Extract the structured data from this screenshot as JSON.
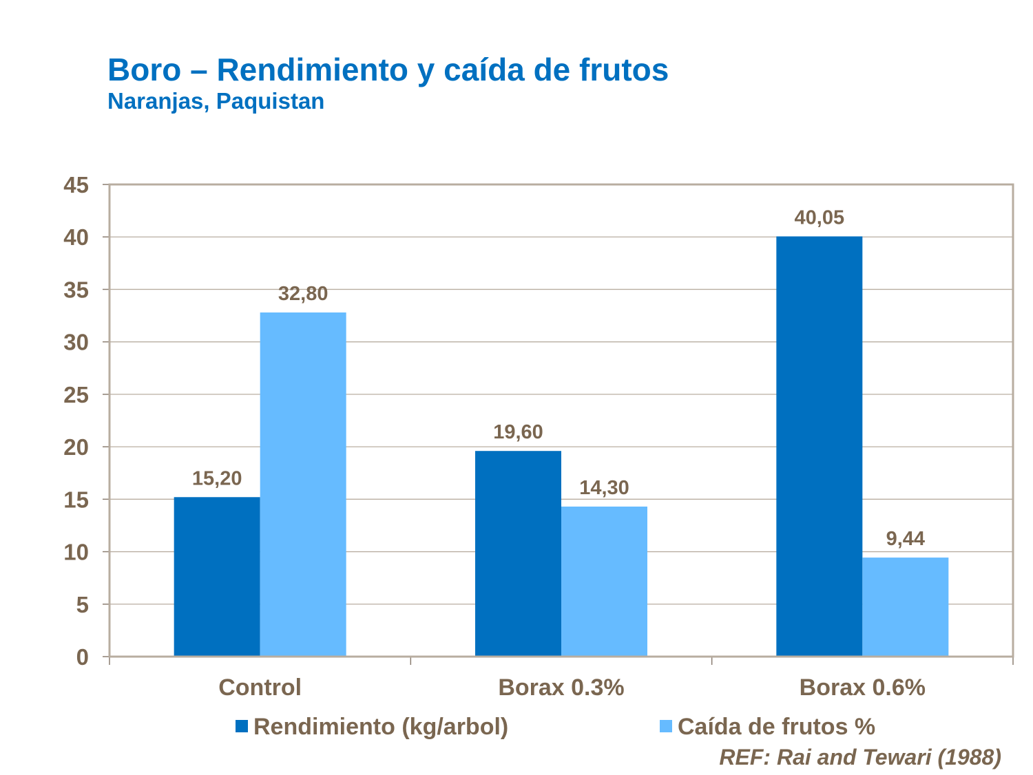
{
  "chart_data": {
    "type": "bar",
    "title": "Boro – Rendimiento y caída de frutos",
    "subtitle": "Naranjas, Paquistan",
    "categories": [
      "Control",
      "Borax 0.3%",
      "Borax 0.6%"
    ],
    "series": [
      {
        "name": "Rendimiento (kg/arbol)",
        "values": [
          15.2,
          19.6,
          40.05
        ],
        "labels": [
          "15,20",
          "19,60",
          "40,05"
        ],
        "color": "#0070C0"
      },
      {
        "name": "Caída de frutos %",
        "values": [
          32.8,
          14.3,
          9.44
        ],
        "labels": [
          "32,80",
          "14,30",
          "9,44"
        ],
        "color": "#66BBFF"
      }
    ],
    "ylim": [
      0,
      45
    ],
    "yticks": [
      0,
      5,
      10,
      15,
      20,
      25,
      30,
      35,
      40,
      45
    ],
    "grid": true,
    "legend": "bottom",
    "xlabel": "",
    "ylabel": ""
  },
  "reference": "REF: Rai and Tewari (1988)",
  "colors": {
    "text": "#7A6650",
    "title": "#0070C0",
    "frame": "#B8ADA0"
  }
}
